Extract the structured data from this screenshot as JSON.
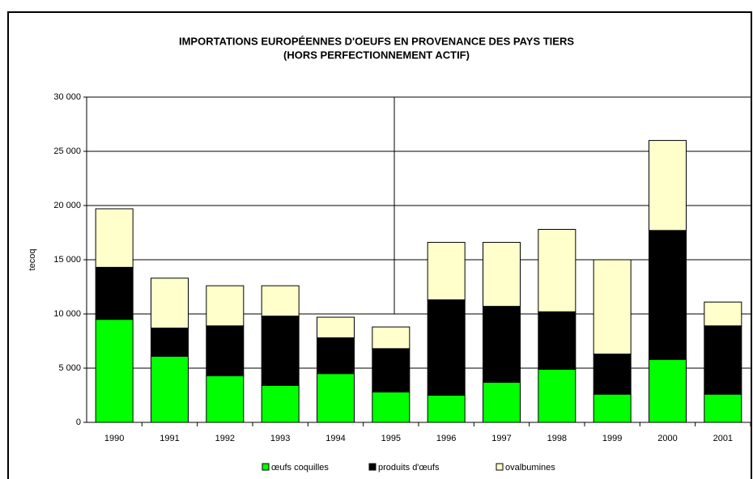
{
  "chart_data": {
    "type": "stacked_bar",
    "title": "IMPORTATIONS EUROPÉENNES D'OEUFS EN PROVENANCE DES PAYS TIERS",
    "subtitle": "(HORS PERFECTIONNEMENT ACTIF)",
    "y_label": "tecoq",
    "categories": [
      "1990",
      "1991",
      "1992",
      "1993",
      "1994",
      "1995",
      "1996",
      "1997",
      "1998",
      "1999",
      "2000",
      "2001"
    ],
    "series": [
      {
        "name": "œufs coquilles",
        "color": "#00ff00",
        "values": [
          9500,
          6100,
          4300,
          3400,
          4500,
          2800,
          2500,
          3700,
          4900,
          2600,
          5800,
          2600
        ]
      },
      {
        "name": "produits d'œufs",
        "color": "#000000",
        "values": [
          4800,
          2600,
          4600,
          6400,
          3300,
          4000,
          8800,
          7000,
          5300,
          3700,
          11900,
          6300
        ]
      },
      {
        "name": "ovalbumines",
        "color": "#ffffcc",
        "values": [
          5400,
          4600,
          3700,
          2800,
          1900,
          2000,
          5300,
          5900,
          7600,
          8700,
          8300,
          2200
        ]
      }
    ],
    "ylim": [
      0,
      30000
    ],
    "yticks": [
      0,
      {
        "value": 5000,
        "label": "5 000"
      },
      {
        "value": 10000,
        "label": "10 000"
      },
      {
        "value": 15000,
        "label": "15 000"
      },
      {
        "value": 20000,
        "label": "20 000"
      },
      {
        "value": 25000,
        "label": "25 000"
      },
      {
        "value": 30000,
        "label": "30 000"
      }
    ],
    "grid": true,
    "legend": "bottom"
  }
}
